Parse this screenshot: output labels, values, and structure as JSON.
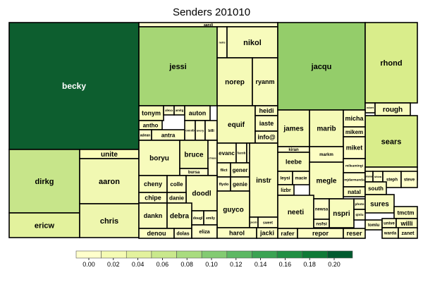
{
  "chart_data": {
    "type": "treemap",
    "title": "Senders 201010",
    "colorbar": {
      "ticks": [
        "0.00",
        "0.02",
        "0.04",
        "0.06",
        "0.08",
        "0.10",
        "0.12",
        "0.14",
        "0.16",
        "0.18",
        "0.20"
      ],
      "colors": [
        "#ffffcc",
        "#f5fbb4",
        "#e3f29d",
        "#c9e88c",
        "#a9dc7f",
        "#83cb72",
        "#5db864",
        "#3ba353",
        "#218f44",
        "#0f7a37",
        "#005a2f"
      ]
    },
    "cells": [
      {
        "name": "becky",
        "value": 0.2,
        "color": "#0d5e2f"
      },
      {
        "name": "dirkg",
        "value": 0.05,
        "color": "#c7e58a"
      },
      {
        "name": "ericw",
        "value": 0.03,
        "color": "#e3f29d"
      },
      {
        "name": "unite",
        "value": 0.01,
        "color": "#fbfdb9"
      },
      {
        "name": "aaron",
        "value": 0.02,
        "color": "#f1f8b2"
      },
      {
        "name": "chris",
        "value": 0.02,
        "color": "#eef6ae"
      },
      {
        "name": "aandi",
        "value": 0.0,
        "color": "#ffffcc"
      },
      {
        "name": "jessi",
        "value": 0.07,
        "color": "#a6d675"
      },
      {
        "name": "neils",
        "value": 0.0,
        "color": "#fdfec4"
      },
      {
        "name": "nikol",
        "value": 0.01,
        "color": "#f7fbbc"
      },
      {
        "name": "norep",
        "value": 0.01,
        "color": "#f5fab7"
      },
      {
        "name": "ryanm",
        "value": 0.01,
        "color": "#f7fbbc"
      },
      {
        "name": "tonym",
        "value": 0.01,
        "color": "#fafdbd"
      },
      {
        "name": "alexa",
        "value": 0.0,
        "color": "#ffffcc"
      },
      {
        "name": "amitg",
        "value": 0.0,
        "color": "#ffffcc"
      },
      {
        "name": "auton",
        "value": 0.0,
        "color": "#fdfec4"
      },
      {
        "name": "antho",
        "value": 0.0,
        "color": "#fdfec4"
      },
      {
        "name": "adean",
        "value": 0.0,
        "color": "#ffffcc"
      },
      {
        "name": "antra",
        "value": 0.0,
        "color": "#fdfec4"
      },
      {
        "name": "cecob",
        "value": 0.0,
        "color": "#ffffcc"
      },
      {
        "name": "avery",
        "value": 0.0,
        "color": "#ffffcc"
      },
      {
        "name": "billi",
        "value": 0.0,
        "color": "#ffffcc"
      },
      {
        "name": "equif",
        "value": 0.01,
        "color": "#f5fab7"
      },
      {
        "name": "heidi",
        "value": 0.0,
        "color": "#fdfec4"
      },
      {
        "name": "iaste",
        "value": 0.0,
        "color": "#fdfec4"
      },
      {
        "name": "info@",
        "value": 0.0,
        "color": "#fdfec4"
      },
      {
        "name": "boryu",
        "value": 0.01,
        "color": "#f7fbbc"
      },
      {
        "name": "bruce",
        "value": 0.01,
        "color": "#f3f9b4"
      },
      {
        "name": "chase",
        "value": 0.0,
        "color": "#ffffcc"
      },
      {
        "name": "bursa",
        "value": 0.0,
        "color": "#ffffcc"
      },
      {
        "name": "evanc",
        "value": 0.0,
        "color": "#fdfec4"
      },
      {
        "name": "facob",
        "value": 0.0,
        "color": "#ffffcc"
      },
      {
        "name": "field",
        "value": 0.0,
        "color": "#ffffcc"
      },
      {
        "name": "flict",
        "value": 0.0,
        "color": "#fdfec4"
      },
      {
        "name": "gener",
        "value": 0.0,
        "color": "#fdfec4"
      },
      {
        "name": "flydo",
        "value": 0.0,
        "color": "#ffffcc"
      },
      {
        "name": "genie",
        "value": 0.0,
        "color": "#fdfec4"
      },
      {
        "name": "instr",
        "value": 0.01,
        "color": "#f8fcbd"
      },
      {
        "name": "cheny",
        "value": 0.01,
        "color": "#f8fcbd"
      },
      {
        "name": "colle",
        "value": 0.0,
        "color": "#fdfec4"
      },
      {
        "name": "doodl",
        "value": 0.01,
        "color": "#f8fcbd"
      },
      {
        "name": "chipe",
        "value": 0.0,
        "color": "#fdfec4"
      },
      {
        "name": "danie",
        "value": 0.0,
        "color": "#fdfec4"
      },
      {
        "name": "dankn",
        "value": 0.01,
        "color": "#f8fcbd"
      },
      {
        "name": "debra",
        "value": 0.01,
        "color": "#f8fcbd"
      },
      {
        "name": "dougl",
        "value": 0.0,
        "color": "#ffffcc"
      },
      {
        "name": "emily",
        "value": 0.0,
        "color": "#ffffcc"
      },
      {
        "name": "guyco",
        "value": 0.01,
        "color": "#f7fbbc"
      },
      {
        "name": "jacob",
        "value": 0.0,
        "color": "#ffffcc"
      },
      {
        "name": "sweet2",
        "value": 0.0,
        "color": "#ffffcc"
      },
      {
        "name": "denou",
        "value": 0.0,
        "color": "#fdfec4"
      },
      {
        "name": "dolas",
        "value": 0.0,
        "color": "#ffffcc"
      },
      {
        "name": "eliza",
        "value": 0.0,
        "color": "#ffffcc"
      },
      {
        "name": "harol",
        "value": 0.0,
        "color": "#fdfec4"
      },
      {
        "name": "jacki",
        "value": 0.0,
        "color": "#fdfec4"
      },
      {
        "name": "jacqu",
        "value": 0.08,
        "color": "#94cd6a"
      },
      {
        "name": "rhond",
        "value": 0.04,
        "color": "#d9ed8b"
      },
      {
        "name": "robert",
        "value": 0.0,
        "color": "#ffffcc"
      },
      {
        "name": "rough",
        "value": 0.01,
        "color": "#f8fcbd"
      },
      {
        "name": "sears",
        "value": 0.04,
        "color": "#d9ed8b"
      },
      {
        "name": "james",
        "value": 0.01,
        "color": "#f3f9b4"
      },
      {
        "name": "marib",
        "value": 0.01,
        "color": "#f5fab7"
      },
      {
        "name": "micha",
        "value": 0.0,
        "color": "#fdfec4"
      },
      {
        "name": "mikem",
        "value": 0.0,
        "color": "#fdfec4"
      },
      {
        "name": "kiran",
        "value": 0.0,
        "color": "#ffffcc"
      },
      {
        "name": "miket",
        "value": 0.0,
        "color": "#fdfec4"
      },
      {
        "name": "markm",
        "value": 0.0,
        "color": "#fdfec4"
      },
      {
        "name": "leebe",
        "value": 0.01,
        "color": "#f8fcbd"
      },
      {
        "name": "mileamingi",
        "value": 0.0,
        "color": "#ffffcc"
      },
      {
        "name": "leysi",
        "value": 0.0,
        "color": "#fdfec4"
      },
      {
        "name": "macie",
        "value": 0.0,
        "color": "#ffffcc"
      },
      {
        "name": "megle",
        "value": 0.01,
        "color": "#f8fcbd"
      },
      {
        "name": "mjdarmanda",
        "value": 0.0,
        "color": "#ffffcc"
      },
      {
        "name": "steve",
        "value": 0.0,
        "color": "#ffffcc"
      },
      {
        "name": "lizbr",
        "value": 0.0,
        "color": "#fdfec4"
      },
      {
        "name": "natal",
        "value": 0.0,
        "color": "#fdfec4"
      },
      {
        "name": "skanat",
        "value": 0.0,
        "color": "#ffffcc"
      },
      {
        "name": "shiva",
        "value": 0.0,
        "color": "#ffffcc"
      },
      {
        "name": "steph",
        "value": 0.0,
        "color": "#ffffcc"
      },
      {
        "name": "steve2",
        "value": 0.0,
        "color": "#ffffcc"
      },
      {
        "name": "south",
        "value": 0.0,
        "color": "#fdfec4"
      },
      {
        "name": "neeti",
        "value": 0.01,
        "color": "#f8fcbd"
      },
      {
        "name": "newsa",
        "value": 0.0,
        "color": "#ffffcc"
      },
      {
        "name": "nspri",
        "value": 0.01,
        "color": "#f8fcbd"
      },
      {
        "name": "photo",
        "value": 0.0,
        "color": "#ffffcc"
      },
      {
        "name": "sures",
        "value": 0.01,
        "color": "#f8fcbd"
      },
      {
        "name": "nsfsi",
        "value": 0.0,
        "color": "#ffffcc"
      },
      {
        "name": "qinlu",
        "value": 0.0,
        "color": "#ffffcc"
      },
      {
        "name": "tmctm",
        "value": 0.0,
        "color": "#fdfec4"
      },
      {
        "name": "rafer",
        "value": 0.0,
        "color": "#fdfec4"
      },
      {
        "name": "repor",
        "value": 0.0,
        "color": "#fdfec4"
      },
      {
        "name": "reser",
        "value": 0.0,
        "color": "#fdfec4"
      },
      {
        "name": "tomlu",
        "value": 0.0,
        "color": "#ffffcc"
      },
      {
        "name": "unive",
        "value": 0.0,
        "color": "#ffffcc"
      },
      {
        "name": "willi",
        "value": 0.0,
        "color": "#fdfec4"
      },
      {
        "name": "warda",
        "value": 0.0,
        "color": "#ffffcc"
      },
      {
        "name": "zanet",
        "value": 0.0,
        "color": "#ffffcc"
      }
    ]
  }
}
